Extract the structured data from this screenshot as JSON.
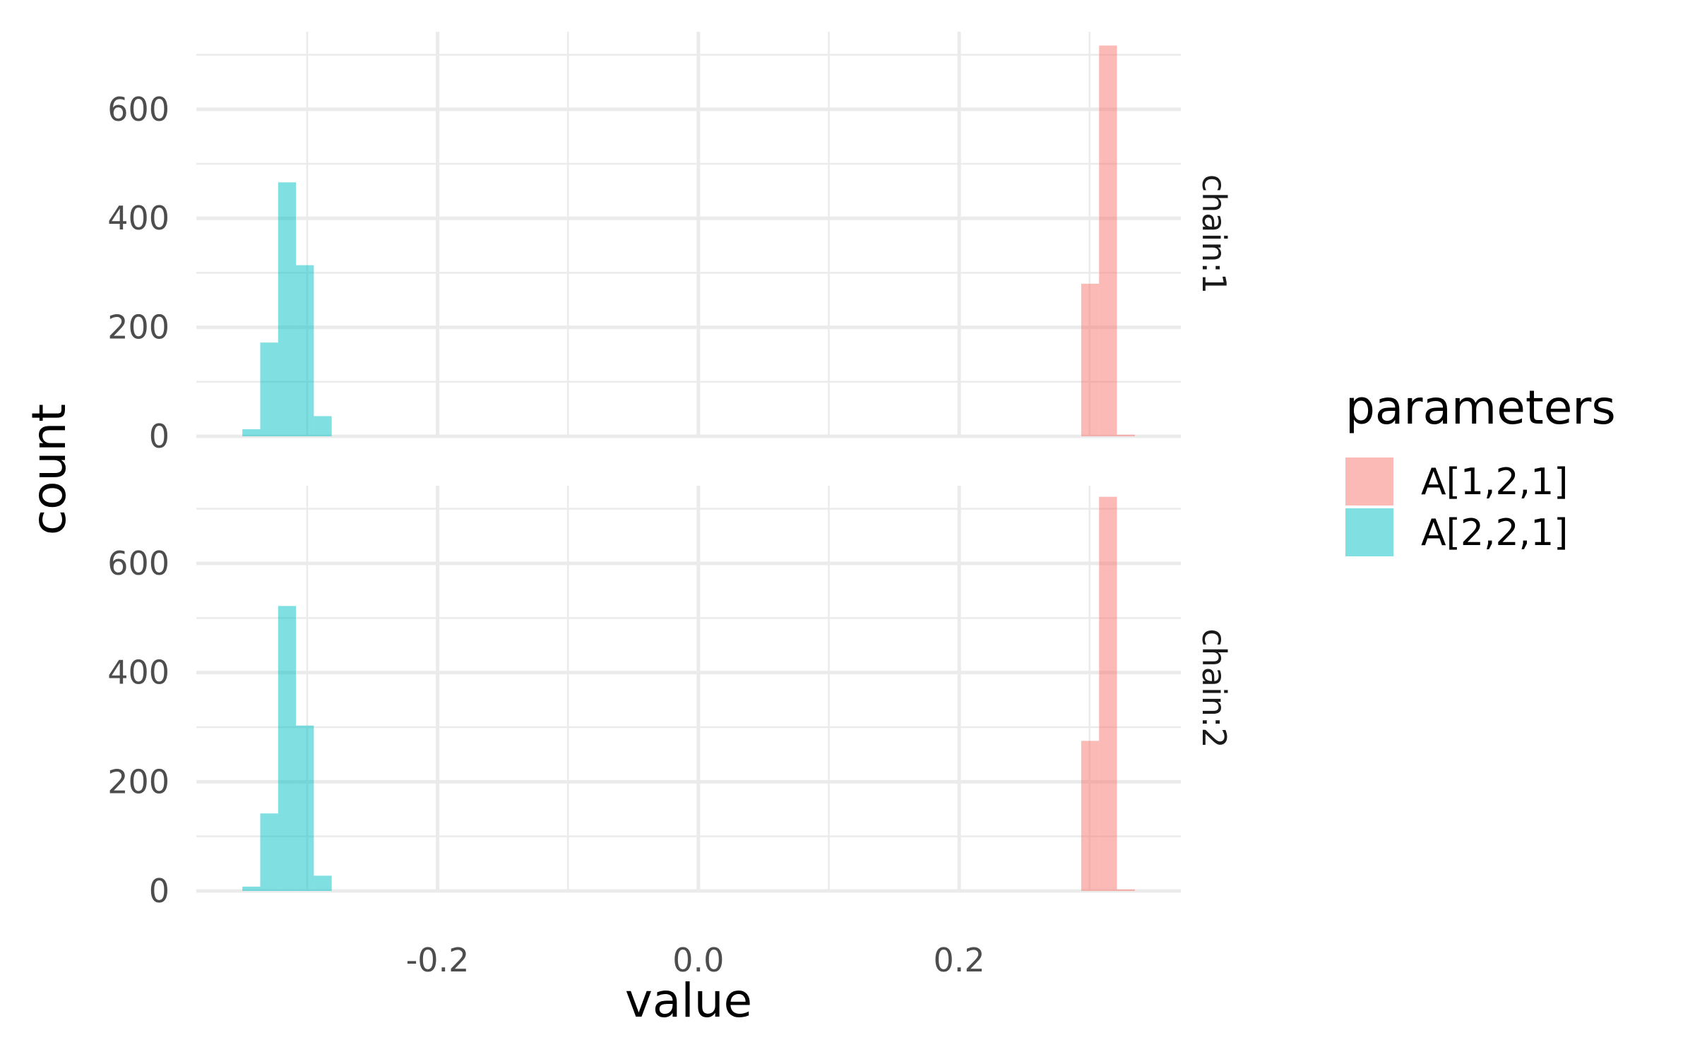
{
  "chart_data": {
    "type": "bar",
    "subtype": "histogram",
    "title": "",
    "xlabel": "value",
    "ylabel": "count",
    "xlim": [
      -0.385,
      0.37
    ],
    "ylim": [
      0,
      720
    ],
    "x_ticks": [
      -0.2,
      0.0,
      0.2
    ],
    "x_tick_labels": [
      "-0.2",
      "0.0",
      "0.2"
    ],
    "y_ticks": [
      0,
      200,
      400,
      600
    ],
    "y_tick_labels": [
      "0",
      "200",
      "400",
      "600"
    ],
    "bin_width": 0.0137,
    "grid": true,
    "legend": {
      "title": "parameters",
      "position": "right",
      "entries": [
        {
          "name": "A[1,2,1]",
          "color": "#f8766d"
        },
        {
          "name": "A[2,2,1]",
          "color": "#00bfc4"
        }
      ]
    },
    "facets": [
      {
        "label": "chain:1",
        "series": [
          {
            "name": "A[1,2,1]",
            "color": "#f8766d",
            "bin_starts": [
              0.2936,
              0.3073,
              0.321
            ],
            "counts": [
              280,
              717,
              3
            ]
          },
          {
            "name": "A[2,2,1]",
            "color": "#00bfc4",
            "bin_starts": [
              -0.3497,
              -0.336,
              -0.3223,
              -0.3086,
              -0.2949
            ],
            "counts": [
              13,
              172,
              466,
              314,
              37
            ]
          }
        ]
      },
      {
        "label": "chain:2",
        "series": [
          {
            "name": "A[1,2,1]",
            "color": "#f8766d",
            "bin_starts": [
              0.2936,
              0.3073,
              0.321
            ],
            "counts": [
              275,
              722,
              3
            ]
          },
          {
            "name": "A[2,2,1]",
            "color": "#00bfc4",
            "bin_starts": [
              -0.3497,
              -0.336,
              -0.3223,
              -0.3086,
              -0.2949
            ],
            "counts": [
              8,
              142,
              522,
              303,
              28
            ]
          }
        ]
      }
    ]
  }
}
